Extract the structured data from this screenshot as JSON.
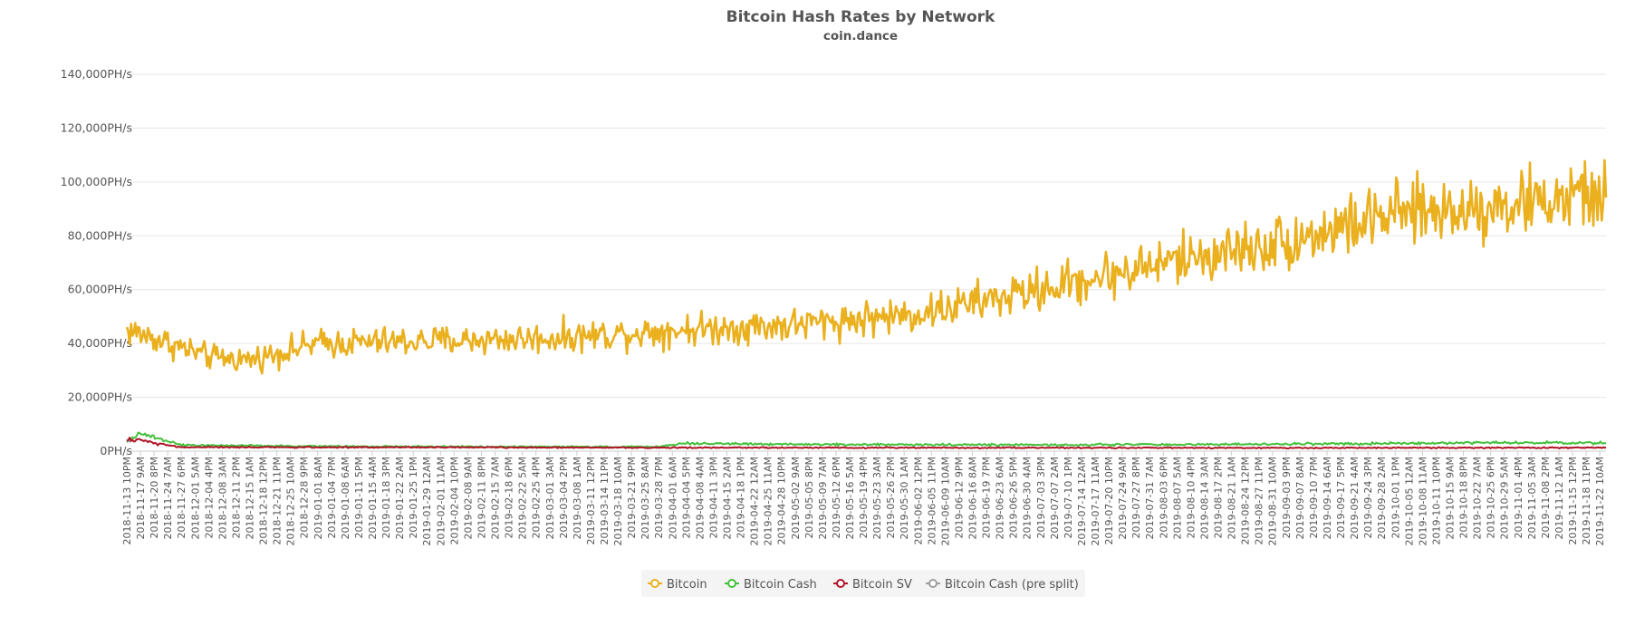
{
  "chart_data": {
    "type": "line",
    "title": "Bitcoin Hash Rates by Network",
    "subtitle": "coin.dance",
    "ylim": [
      0,
      140000
    ],
    "y_tick_values": [
      0,
      20000,
      40000,
      60000,
      80000,
      100000,
      120000,
      140000
    ],
    "y_tick_labels": [
      "0PH/s",
      "20,000PH/s",
      "40,000PH/s",
      "60,000PH/s",
      "80,000PH/s",
      "100,000PH/s",
      "120,000PH/s",
      "140,000PH/s"
    ],
    "x_tick_labels": [
      "2018-11-13 10PM",
      "2018-11-17 9AM",
      "2018-11-20 8PM",
      "2018-11-24 7AM",
      "2018-11-27 6PM",
      "2018-12-01 5AM",
      "2018-12-04 4PM",
      "2018-12-08 3AM",
      "2018-12-11 2PM",
      "2018-12-15 1AM",
      "2018-12-18 12PM",
      "2018-12-21 11PM",
      "2018-12-25 10AM",
      "2018-12-28 9PM",
      "2019-01-01 8AM",
      "2019-01-04 7PM",
      "2019-01-08 6AM",
      "2019-01-11 5PM",
      "2019-01-15 4AM",
      "2019-01-18 3PM",
      "2019-01-22 2AM",
      "2019-01-25 1PM",
      "2019-01-29 12AM",
      "2019-02-01 11AM",
      "2019-02-04 10PM",
      "2019-02-08 9AM",
      "2019-02-11 8PM",
      "2019-02-15 7AM",
      "2019-02-18 6PM",
      "2019-02-22 5AM",
      "2019-02-25 4PM",
      "2019-03-01 3AM",
      "2019-03-04 2PM",
      "2019-03-08 1AM",
      "2019-03-11 12PM",
      "2019-03-14 11PM",
      "2019-03-18 10AM",
      "2019-03-21 9PM",
      "2019-03-25 8AM",
      "2019-03-28 7PM",
      "2019-04-01 6AM",
      "2019-04-04 5PM",
      "2019-04-08 4AM",
      "2019-04-11 3PM",
      "2019-04-15 2AM",
      "2019-04-18 1PM",
      "2019-04-22 12AM",
      "2019-04-25 11AM",
      "2019-04-28 10PM",
      "2019-05-02 9AM",
      "2019-05-05 8PM",
      "2019-05-09 7AM",
      "2019-05-12 6PM",
      "2019-05-16 5AM",
      "2019-05-19 4PM",
      "2019-05-23 3AM",
      "2019-05-26 2PM",
      "2019-05-30 1AM",
      "2019-06-02 12PM",
      "2019-06-05 11PM",
      "2019-06-09 10AM",
      "2019-06-12 9PM",
      "2019-06-16 8AM",
      "2019-06-19 7PM",
      "2019-06-23 6AM",
      "2019-06-26 5PM",
      "2019-06-30 4AM",
      "2019-07-03 3PM",
      "2019-07-07 2AM",
      "2019-07-10 1PM",
      "2019-07-14 12AM",
      "2019-07-17 11AM",
      "2019-07-20 10PM",
      "2019-07-24 9AM",
      "2019-07-27 8PM",
      "2019-07-31 7AM",
      "2019-08-03 6PM",
      "2019-08-07 5AM",
      "2019-08-10 4PM",
      "2019-08-14 3AM",
      "2019-08-17 2PM",
      "2019-08-21 1AM",
      "2019-08-24 12PM",
      "2019-08-27 11PM",
      "2019-08-31 10AM",
      "2019-09-03 9PM",
      "2019-09-07 8AM",
      "2019-09-10 7PM",
      "2019-09-14 6AM",
      "2019-09-17 5PM",
      "2019-09-21 4AM",
      "2019-09-24 3PM",
      "2019-09-28 2AM",
      "2019-10-01 1PM",
      "2019-10-05 12AM",
      "2019-10-08 11AM",
      "2019-10-11 10PM",
      "2019-10-15 9AM",
      "2019-10-18 8PM",
      "2019-10-22 7AM",
      "2019-10-25 6PM",
      "2019-10-29 5AM",
      "2019-11-01 4PM",
      "2019-11-05 3AM",
      "2019-11-08 2PM",
      "2019-11-12 1AM",
      "2019-11-15 12PM",
      "2019-11-18 11PM",
      "2019-11-22 10AM"
    ],
    "x_range": [
      "2018-11-13 10PM",
      "2019-11-24"
    ],
    "grid": true,
    "legend_position": "bottom",
    "series": [
      {
        "name": "Bitcoin",
        "color": "#EAB01E",
        "noise": 0.2,
        "anchors": [
          [
            "2018-11-13 10PM",
            45000
          ],
          [
            "2018-11-20 8PM",
            42000
          ],
          [
            "2018-12-04 4PM",
            35000
          ],
          [
            "2018-12-15 1AM",
            34000
          ],
          [
            "2019-01-01 8AM",
            40000
          ],
          [
            "2019-02-01 11AM",
            41000
          ],
          [
            "2019-03-01 3AM",
            42000
          ],
          [
            "2019-04-01 6AM",
            45000
          ],
          [
            "2019-05-02 9AM",
            47000
          ],
          [
            "2019-06-02 12PM",
            51000
          ],
          [
            "2019-07-03 3PM",
            60000
          ],
          [
            "2019-08-03 6PM",
            70000
          ],
          [
            "2019-09-03 9PM",
            78000
          ],
          [
            "2019-10-01 1PM",
            88000
          ],
          [
            "2019-11-01 4PM",
            92000
          ],
          [
            "2019-11-24",
            95000
          ]
        ]
      },
      {
        "name": "Bitcoin Cash",
        "color": "#44C03C",
        "noise": 0.25,
        "anchors": [
          [
            "2018-11-13 10PM",
            3500
          ],
          [
            "2018-11-17 9AM",
            7000
          ],
          [
            "2018-11-20 8PM",
            5000
          ],
          [
            "2018-11-27 6PM",
            2200
          ],
          [
            "2019-01-15 4AM",
            1700
          ],
          [
            "2019-03-28 7PM",
            1600
          ],
          [
            "2019-04-04 5PM",
            3000
          ],
          [
            "2019-05-02 9AM",
            2500
          ],
          [
            "2019-07-03 3PM",
            2300
          ],
          [
            "2019-09-03 9PM",
            2600
          ],
          [
            "2019-11-01 4PM",
            3200
          ],
          [
            "2019-11-24",
            3000
          ]
        ]
      },
      {
        "name": "Bitcoin SV",
        "color": "#B01427",
        "noise": 0.25,
        "anchors": [
          [
            "2018-11-13 10PM",
            4500
          ],
          [
            "2018-11-17 9AM",
            4000
          ],
          [
            "2018-11-20 8PM",
            3000
          ],
          [
            "2018-11-27 6PM",
            1500
          ],
          [
            "2019-04-01 6AM",
            1300
          ],
          [
            "2019-09-03 9PM",
            1200
          ],
          [
            "2019-11-24",
            1300
          ]
        ]
      },
      {
        "name": "Bitcoin Cash (pre split)",
        "color": "#9E9E9E",
        "noise": 0.1,
        "anchors": [
          [
            "2018-11-13 10PM",
            4000
          ],
          [
            "2018-11-15",
            3500
          ]
        ]
      }
    ]
  }
}
